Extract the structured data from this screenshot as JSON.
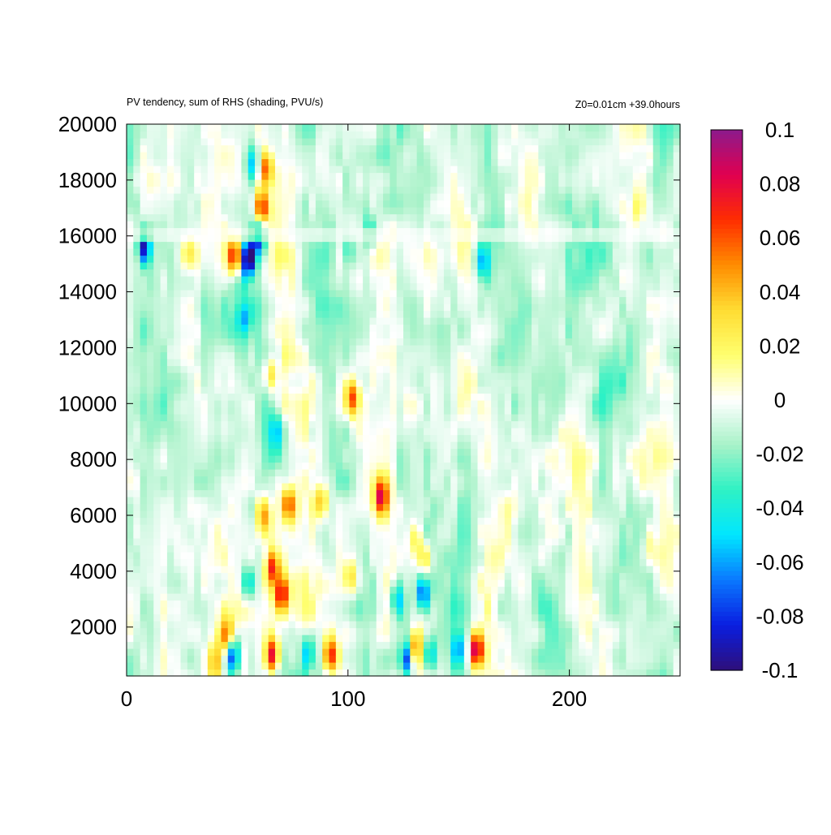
{
  "chart_data": {
    "type": "heatmap",
    "title": "PV tendency, sum of RHS (shading, PVU/s)",
    "subtitle": "Z0=0.01cm   +39.0hours",
    "xlabel": "",
    "ylabel": "",
    "xlim": [
      0,
      250
    ],
    "ylim": [
      250,
      20000
    ],
    "x_ticks": [
      0,
      100,
      200
    ],
    "y_ticks": [
      2000,
      4000,
      6000,
      8000,
      10000,
      12000,
      14000,
      16000,
      18000,
      20000
    ],
    "colorbar": {
      "min": -0.1,
      "max": 0.1,
      "ticks": [
        "0.1",
        "0.08",
        "0.06",
        "0.04",
        "0.02",
        "0",
        "-0.02",
        "-0.04",
        "-0.06",
        "-0.08",
        "-0.1"
      ],
      "stops": [
        "#2e0f7a",
        "#0a1ee0",
        "#0a78ff",
        "#00e6ff",
        "#2ef2c4",
        "#a8f2c8",
        "#ffffff",
        "#ffff6e",
        "#ffdc32",
        "#ff8c00",
        "#ff2d00",
        "#e00050",
        "#8c1a8c"
      ]
    },
    "features": [
      {
        "x": 8,
        "y": 15600,
        "value": -0.09
      },
      {
        "x": 28,
        "y": 15400,
        "value": 0.04
      },
      {
        "x": 49,
        "y": 15300,
        "value": 0.09
      },
      {
        "x": 55,
        "y": 15200,
        "value": -0.1
      },
      {
        "x": 60,
        "y": 16000,
        "value": -0.09
      },
      {
        "x": 61,
        "y": 17000,
        "value": 0.08
      },
      {
        "x": 63,
        "y": 18500,
        "value": 0.07
      },
      {
        "x": 57,
        "y": 18600,
        "value": -0.05
      },
      {
        "x": 53,
        "y": 13000,
        "value": -0.04
      },
      {
        "x": 65,
        "y": 11000,
        "value": 0.05
      },
      {
        "x": 68,
        "y": 9000,
        "value": -0.05
      },
      {
        "x": 66,
        "y": 4200,
        "value": 0.08
      },
      {
        "x": 70,
        "y": 3200,
        "value": 0.08
      },
      {
        "x": 73,
        "y": 6400,
        "value": 0.07
      },
      {
        "x": 62,
        "y": 6000,
        "value": 0.05
      },
      {
        "x": 55,
        "y": 3600,
        "value": -0.05
      },
      {
        "x": 88,
        "y": 6500,
        "value": 0.05
      },
      {
        "x": 102,
        "y": 10200,
        "value": 0.07
      },
      {
        "x": 115,
        "y": 6700,
        "value": 0.08
      },
      {
        "x": 101,
        "y": 3800,
        "value": 0.04
      },
      {
        "x": 122,
        "y": 3000,
        "value": -0.05
      },
      {
        "x": 130,
        "y": 5200,
        "value": 0.03
      },
      {
        "x": 134,
        "y": 4500,
        "value": 0.04
      },
      {
        "x": 134,
        "y": 3200,
        "value": -0.07
      },
      {
        "x": 130,
        "y": 1200,
        "value": 0.08
      },
      {
        "x": 127,
        "y": 900,
        "value": -0.09
      },
      {
        "x": 137,
        "y": 1000,
        "value": -0.06
      },
      {
        "x": 158,
        "y": 1200,
        "value": 0.1
      },
      {
        "x": 150,
        "y": 1200,
        "value": -0.05
      },
      {
        "x": 161,
        "y": 15100,
        "value": -0.05
      },
      {
        "x": 100,
        "y": 15500,
        "value": -0.04
      },
      {
        "x": 110,
        "y": 16200,
        "value": -0.03
      },
      {
        "x": 48,
        "y": 1000,
        "value": -0.09
      },
      {
        "x": 45,
        "y": 1700,
        "value": 0.07
      },
      {
        "x": 66,
        "y": 1000,
        "value": 0.09
      },
      {
        "x": 92,
        "y": 1000,
        "value": 0.08
      },
      {
        "x": 82,
        "y": 1100,
        "value": -0.05
      },
      {
        "x": 40,
        "y": 800,
        "value": 0.05
      },
      {
        "x": 236,
        "y": 5000,
        "value": 0.02
      },
      {
        "x": 230,
        "y": 17000,
        "value": 0.02
      }
    ]
  }
}
